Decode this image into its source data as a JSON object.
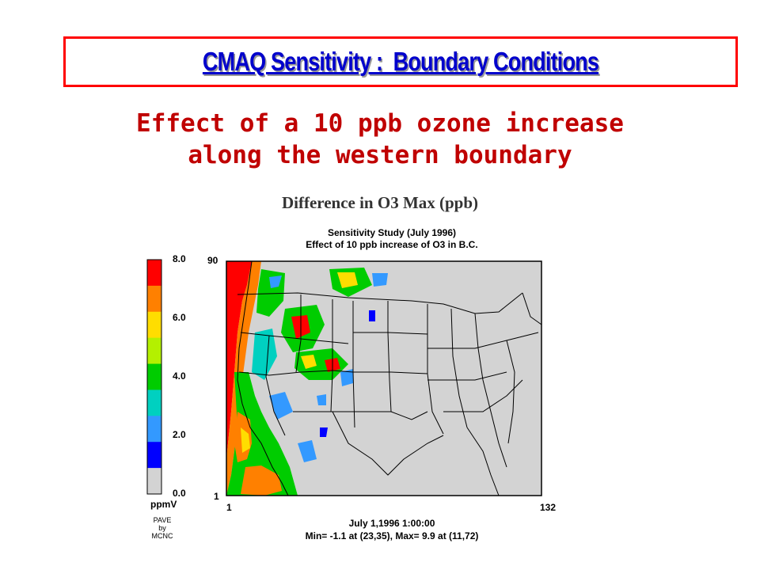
{
  "slide": {
    "title": "CMAQ Sensitivity :  Boundary Conditions",
    "subtitle_line1": "Effect of a 10 ppb ozone increase",
    "subtitle_line2": "along the western boundary",
    "figure_title": "Difference in  O3 Max (ppb)"
  },
  "plot": {
    "header_line1": "Sensitivity Study (July 1996)",
    "header_line2": "Effect of 10 ppb increase of O3 in B.C.",
    "footer_line1": "July 1,1996 1:00:00",
    "footer_line2": "Min=    -1.1 at (23,35), Max=    9.9 at (11,72)",
    "y_axis_top": "90",
    "y_axis_bottom": "1",
    "x_axis_left": "1",
    "x_axis_right": "132",
    "credit_line1": "PAVE",
    "credit_line2": "by",
    "credit_line3": "MCNC"
  },
  "legend": {
    "unit": "ppmV",
    "labels": [
      "8.0",
      "6.0",
      "4.0",
      "2.0",
      "0.0"
    ],
    "colors": [
      "#ff0000",
      "#ff8000",
      "#ffdd00",
      "#b4f000",
      "#00cc00",
      "#00d0c0",
      "#3399ff",
      "#0000ff",
      "#d3d3d3"
    ]
  },
  "colors": {
    "title": "#0000cc",
    "subtitle": "#c00000",
    "border": "#ff0000",
    "background_grid": "#d3d3d3"
  }
}
